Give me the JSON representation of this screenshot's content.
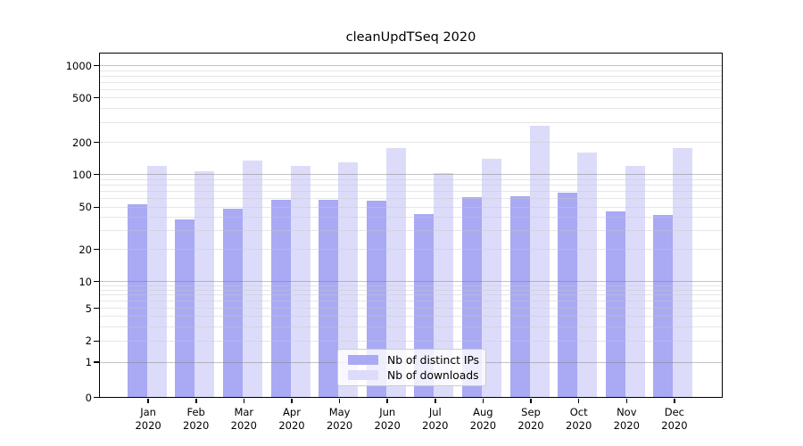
{
  "chart_data": {
    "type": "bar",
    "title": "cleanUpdTSeq 2020",
    "categories": [
      "Jan 2020",
      "Feb 2020",
      "Mar 2020",
      "Apr 2020",
      "May 2020",
      "Jun 2020",
      "Jul 2020",
      "Aug 2020",
      "Sep 2020",
      "Oct 2020",
      "Nov 2020",
      "Dec 2020"
    ],
    "series": [
      {
        "name": "Nb of distinct IPs",
        "color": "#a9a9f4",
        "values": [
          53,
          38,
          48,
          58,
          58,
          57,
          43,
          61,
          62,
          67,
          45,
          42
        ]
      },
      {
        "name": "Nb of downloads",
        "color": "#dcdcfa",
        "values": [
          120,
          105,
          133,
          118,
          128,
          174,
          102,
          140,
          280,
          158,
          118,
          175
        ]
      }
    ],
    "yscale": "symlog",
    "y_ticks": [
      0,
      1,
      2,
      5,
      10,
      20,
      50,
      100,
      200,
      500,
      1000
    ],
    "ylim": [
      0,
      1300
    ],
    "xlabel": "",
    "ylabel": "",
    "grid": "on",
    "legend_position": "lower center",
    "colors": {
      "background": "#ffffff",
      "axis": "#000000",
      "text": "#000000",
      "major_gridline": "#c2c2c2",
      "minor_gridline": "#e6e6e6"
    }
  }
}
